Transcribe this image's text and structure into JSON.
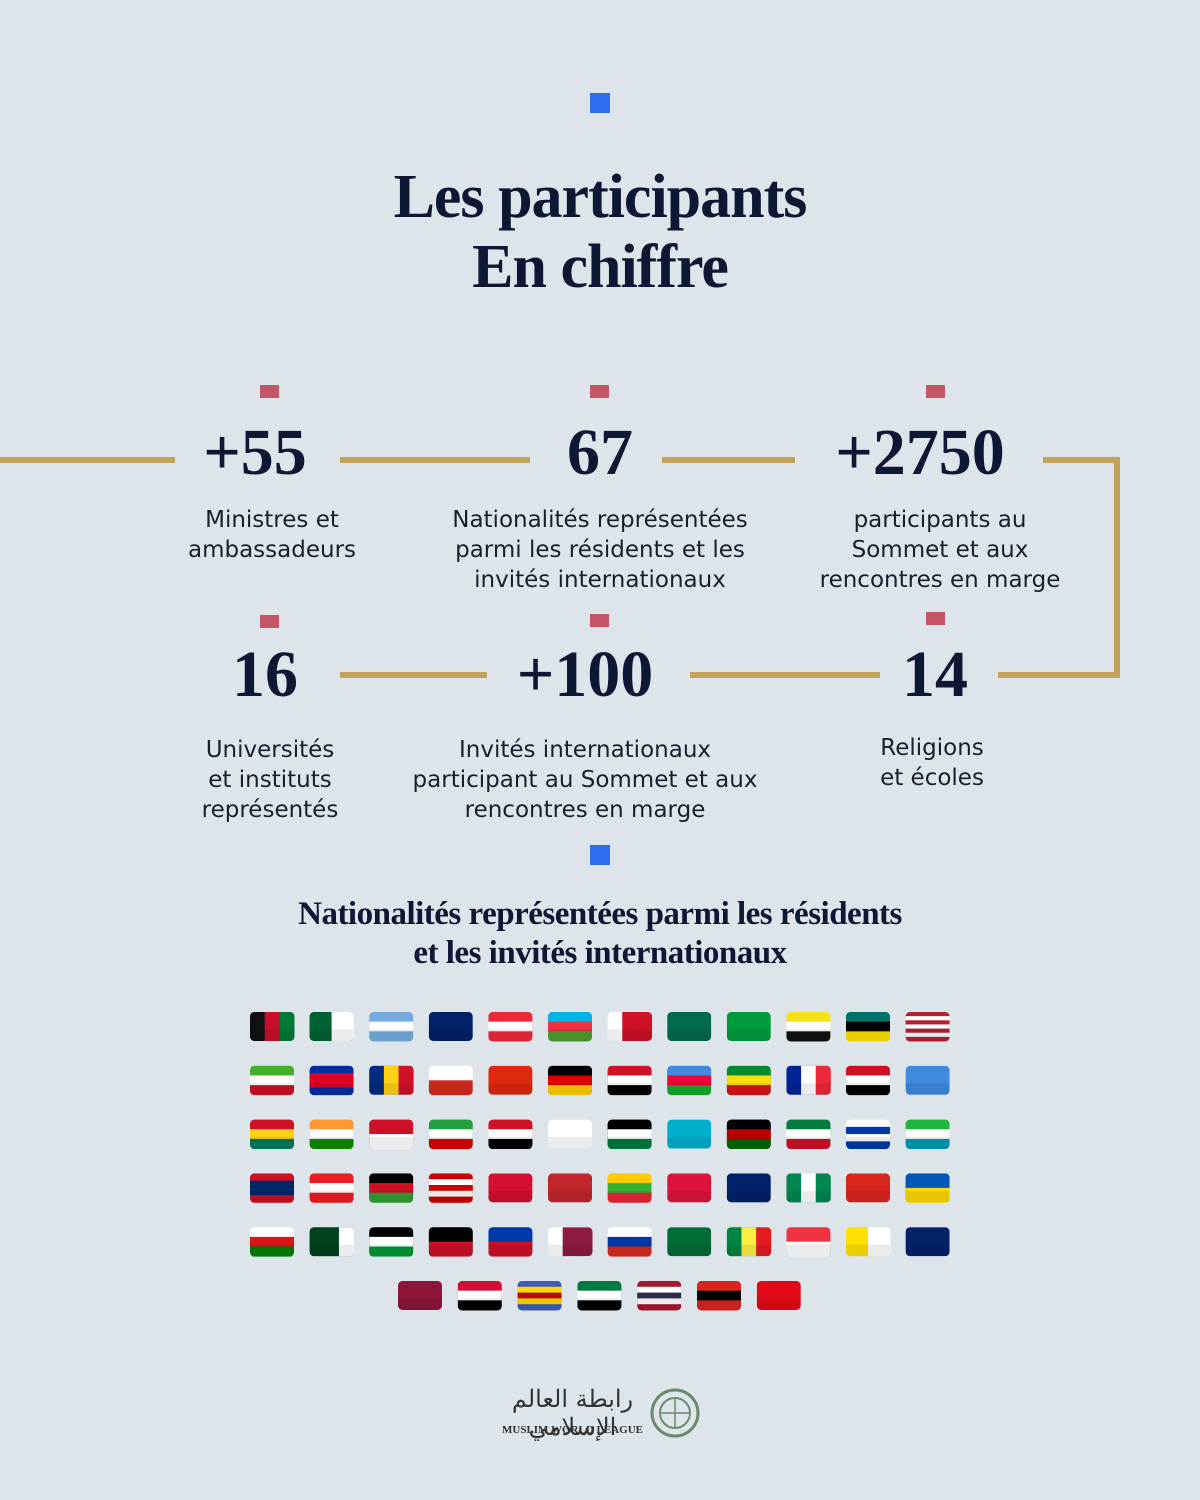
{
  "header": {
    "title_lines": [
      "Les participants",
      "En chiffre"
    ]
  },
  "stats": [
    {
      "value": "+55",
      "label_lines": [
        "Ministres et",
        "ambassadeurs"
      ]
    },
    {
      "value": "67",
      "label_lines": [
        "Nationalités représentées",
        "parmi les résidents et les",
        "invités internationaux"
      ]
    },
    {
      "value": "+2750",
      "label_lines": [
        "participants au",
        "Sommet et aux",
        "rencontres en marge"
      ]
    },
    {
      "value": "16",
      "label_lines": [
        "Universités",
        "et instituts",
        "représentés"
      ]
    },
    {
      "value": "+100",
      "label_lines": [
        "Invités internationaux",
        "participant au Sommet et aux",
        "rencontres en marge"
      ]
    },
    {
      "value": "14",
      "label_lines": [
        "Religions",
        "et écoles"
      ]
    }
  ],
  "section": {
    "title_lines": [
      "Nationalités représentées parmi les résidents",
      "et les invités internationaux"
    ]
  },
  "footer": {
    "arabic": "رابطة العالم الإسلامي",
    "name": "MUSLIM WORLD LEAGUE"
  }
}
